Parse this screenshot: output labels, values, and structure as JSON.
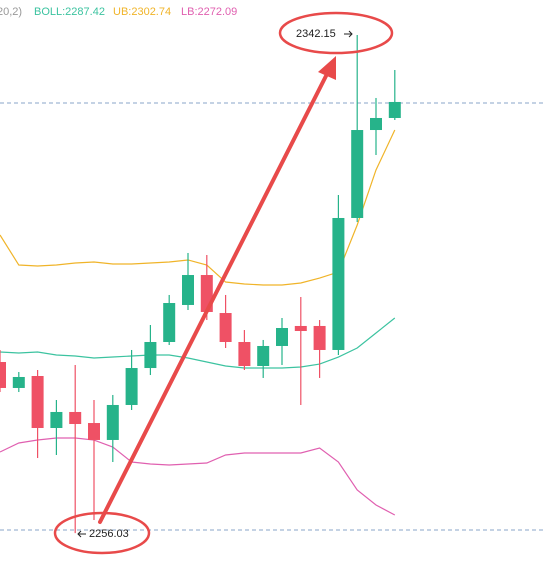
{
  "chart_data": {
    "type": "candlestick",
    "indicator_params": "20,2)",
    "ylim": [
      2250.34,
      2348.2
    ],
    "up_color": "#26b38a",
    "down_color": "#ef5165",
    "candles": [
      {
        "open": 2285.61,
        "high": 2287.69,
        "low": 2280.42,
        "close": 2281.12
      },
      {
        "open": 2281.12,
        "high": 2283.88,
        "low": 2280.42,
        "close": 2283.02
      },
      {
        "open": 2283.19,
        "high": 2284.23,
        "low": 2269.01,
        "close": 2274.2
      },
      {
        "open": 2274.2,
        "high": 2279.04,
        "low": 2269.53,
        "close": 2276.97
      },
      {
        "open": 2276.97,
        "high": 2285.09,
        "low": 2256.03,
        "close": 2274.89
      },
      {
        "open": 2275.06,
        "high": 2279.04,
        "low": 2258.29,
        "close": 2272.13
      },
      {
        "open": 2272.13,
        "high": 2279.91,
        "low": 2268.32,
        "close": 2278.18
      },
      {
        "open": 2278.18,
        "high": 2287.69,
        "low": 2277.31,
        "close": 2284.57
      },
      {
        "open": 2284.57,
        "high": 2292.01,
        "low": 2283.36,
        "close": 2289.07
      },
      {
        "open": 2289.07,
        "high": 2297.2,
        "low": 2288.55,
        "close": 2295.81
      },
      {
        "open": 2295.47,
        "high": 2304.46,
        "low": 2294.6,
        "close": 2300.65
      },
      {
        "open": 2300.65,
        "high": 2304.11,
        "low": 2292.87,
        "close": 2294.26
      },
      {
        "open": 2294.08,
        "high": 2297.2,
        "low": 2288.03,
        "close": 2289.07
      },
      {
        "open": 2289.07,
        "high": 2291.14,
        "low": 2284.23,
        "close": 2284.92
      },
      {
        "open": 2284.92,
        "high": 2289.42,
        "low": 2282.85,
        "close": 2288.38
      },
      {
        "open": 2288.38,
        "high": 2293.22,
        "low": 2285.09,
        "close": 2291.49
      },
      {
        "open": 2291.84,
        "high": 2296.85,
        "low": 2278.18,
        "close": 2290.97
      },
      {
        "open": 2291.84,
        "high": 2292.87,
        "low": 2282.85,
        "close": 2287.69
      },
      {
        "open": 2287.69,
        "high": 2314.49,
        "low": 2286.82,
        "close": 2310.51
      },
      {
        "open": 2310.51,
        "high": 2342.15,
        "low": 2309.82,
        "close": 2325.72
      },
      {
        "open": 2325.72,
        "high": 2331.26,
        "low": 2321.4,
        "close": 2327.8
      },
      {
        "open": 2327.8,
        "high": 2336.1,
        "low": 2327.45,
        "close": 2330.57
      }
    ],
    "series": [
      {
        "name": "BOLL:2287.42",
        "color": "#3cc3a0",
        "values": [
          2287.34,
          2287.17,
          2287.34,
          2286.82,
          2286.65,
          2286.3,
          2286.47,
          2286.65,
          2286.82,
          2286.82,
          2286.3,
          2285.61,
          2284.92,
          2284.57,
          2284.57,
          2284.57,
          2284.75,
          2285.26,
          2286.47,
          2288.03,
          2290.62,
          2293.22
        ]
      },
      {
        "name": "UB:2302.74",
        "color": "#f0b429",
        "values": [
          2307.57,
          2302.38,
          2302.21,
          2302.38,
          2302.73,
          2302.9,
          2302.55,
          2302.55,
          2302.73,
          2302.9,
          2303.25,
          2302.38,
          2299.44,
          2299.1,
          2298.92,
          2298.92,
          2299.27,
          2300.13,
          2301.17,
          2309.3,
          2318.81,
          2325.72
        ]
      },
      {
        "name": "LB:2272.09",
        "color": "#e060b0",
        "values": [
          2270.05,
          2271.61,
          2272.12,
          2272.47,
          2272.47,
          2272.12,
          2270.91,
          2268.32,
          2267.97,
          2267.8,
          2267.97,
          2268.15,
          2269.53,
          2269.88,
          2269.88,
          2269.88,
          2269.88,
          2270.74,
          2268.32,
          2263.48,
          2260.89,
          2259.16
        ]
      }
    ]
  }
}
